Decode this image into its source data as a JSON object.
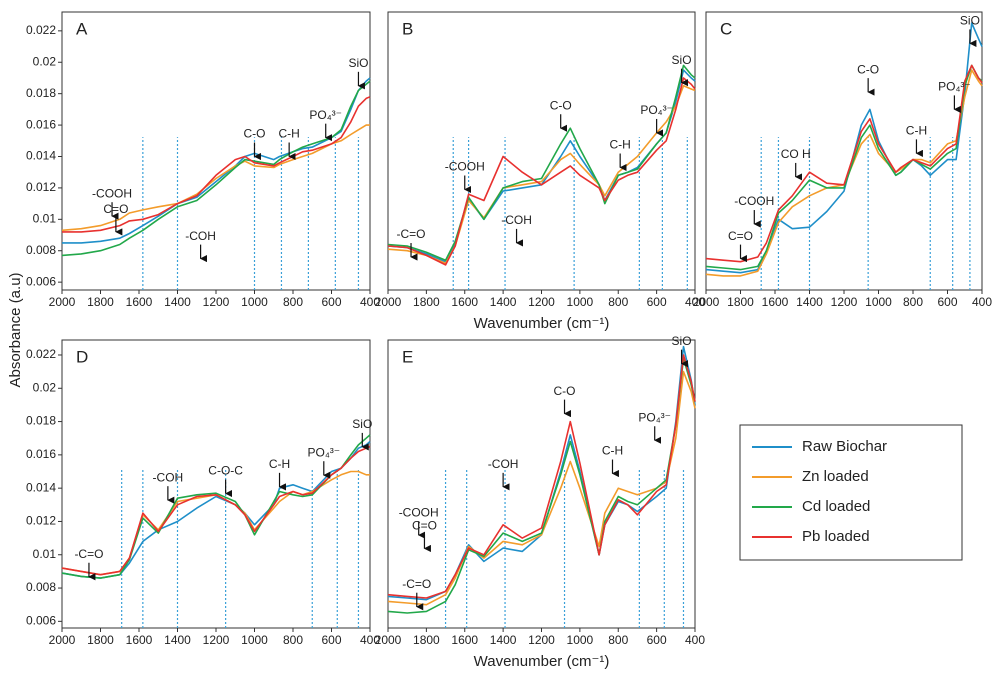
{
  "ylabel": "Absorbance (a.u)",
  "chart_data": [
    {
      "type": "line",
      "label": "A",
      "xlim": [
        2000,
        400
      ],
      "ylim": [
        0.0055,
        0.0232
      ],
      "xticks": [
        2000,
        1800,
        1600,
        1400,
        1200,
        1000,
        800,
        600,
        400
      ],
      "yticks": [
        0.006,
        0.008,
        0.01,
        0.012,
        0.014,
        0.016,
        0.018,
        0.02,
        0.022
      ],
      "x": [
        2000,
        1900,
        1800,
        1700,
        1650,
        1580,
        1500,
        1400,
        1300,
        1200,
        1100,
        1050,
        1000,
        900,
        870,
        800,
        750,
        700,
        600,
        550,
        500,
        460,
        420,
        400
      ],
      "series": [
        {
          "name": "Raw Biochar",
          "color": "#1f8fc9",
          "values": [
            0.0085,
            0.0085,
            0.0086,
            0.0088,
            0.0091,
            0.0096,
            0.0102,
            0.011,
            0.0114,
            0.0124,
            0.0134,
            0.014,
            0.0142,
            0.0138,
            0.014,
            0.0143,
            0.0145,
            0.0146,
            0.0152,
            0.0156,
            0.017,
            0.0182,
            0.0188,
            0.019
          ]
        },
        {
          "name": "Zn loaded",
          "color": "#f39c2b",
          "values": [
            0.0093,
            0.0094,
            0.0096,
            0.01,
            0.0104,
            0.0106,
            0.0108,
            0.011,
            0.0116,
            0.0126,
            0.0134,
            0.0137,
            0.0134,
            0.0133,
            0.0135,
            0.0138,
            0.014,
            0.0142,
            0.0148,
            0.015,
            0.0154,
            0.0157,
            0.016,
            0.016
          ]
        },
        {
          "name": "Cd loaded",
          "color": "#22a84a",
          "values": [
            0.0077,
            0.0078,
            0.008,
            0.0084,
            0.0088,
            0.0093,
            0.01,
            0.0108,
            0.0112,
            0.0122,
            0.0133,
            0.0138,
            0.0137,
            0.0135,
            0.0138,
            0.0143,
            0.0146,
            0.0148,
            0.0152,
            0.0157,
            0.0172,
            0.0182,
            0.0186,
            0.0188
          ]
        },
        {
          "name": "Pb loaded",
          "color": "#e8312f",
          "values": [
            0.0092,
            0.0092,
            0.0093,
            0.0096,
            0.0099,
            0.01,
            0.0103,
            0.011,
            0.0115,
            0.0128,
            0.0138,
            0.014,
            0.0136,
            0.0134,
            0.0136,
            0.014,
            0.0143,
            0.0144,
            0.0148,
            0.0152,
            0.0162,
            0.0172,
            0.0177,
            0.0178
          ]
        }
      ],
      "markers": [
        1580,
        1400,
        1000,
        860,
        720,
        580,
        460
      ],
      "annotations": [
        {
          "text": "-COOH",
          "x": 1740,
          "y": 0.0116
        },
        {
          "text": "C=O",
          "x": 1720,
          "y": 0.0106
        },
        {
          "text": "-COH",
          "x": 1280,
          "y": 0.0089
        },
        {
          "text": "C-O",
          "x": 1000,
          "y": 0.0154
        },
        {
          "text": "C-H",
          "x": 820,
          "y": 0.0154
        },
        {
          "text": "PO₄³⁻",
          "x": 630,
          "y": 0.0166
        },
        {
          "text": "SiO",
          "x": 460,
          "y": 0.0199
        }
      ]
    },
    {
      "type": "line",
      "label": "B",
      "xlabel": "Wavenumber (cm⁻¹)",
      "xlim": [
        2000,
        400
      ],
      "ylim": [
        0.0055,
        0.0232
      ],
      "xticks": [
        2000,
        1800,
        1600,
        1400,
        1200,
        1000,
        800,
        600,
        400
      ],
      "x": [
        2000,
        1900,
        1800,
        1700,
        1650,
        1580,
        1500,
        1400,
        1300,
        1200,
        1100,
        1050,
        1000,
        900,
        870,
        800,
        750,
        700,
        600,
        550,
        500,
        460,
        420,
        400
      ],
      "series": [
        {
          "name": "Raw Biochar",
          "color": "#1f8fc9",
          "values": [
            0.0083,
            0.0082,
            0.0078,
            0.0073,
            0.0085,
            0.0113,
            0.01,
            0.0118,
            0.012,
            0.0122,
            0.014,
            0.015,
            0.014,
            0.0122,
            0.0112,
            0.0128,
            0.013,
            0.0133,
            0.0148,
            0.0155,
            0.0175,
            0.0195,
            0.019,
            0.0188
          ]
        },
        {
          "name": "Zn loaded",
          "color": "#f39c2b",
          "values": [
            0.0081,
            0.008,
            0.0077,
            0.0072,
            0.0083,
            0.0112,
            0.0101,
            0.012,
            0.0122,
            0.0124,
            0.0138,
            0.0142,
            0.0135,
            0.0122,
            0.0115,
            0.013,
            0.0135,
            0.014,
            0.0155,
            0.0162,
            0.0172,
            0.0185,
            0.0183,
            0.0182
          ]
        },
        {
          "name": "Cd loaded",
          "color": "#22a84a",
          "values": [
            0.0084,
            0.0083,
            0.0079,
            0.0074,
            0.0086,
            0.0114,
            0.01,
            0.012,
            0.0124,
            0.0126,
            0.0148,
            0.0158,
            0.0145,
            0.0122,
            0.011,
            0.0128,
            0.013,
            0.0132,
            0.0148,
            0.0155,
            0.0178,
            0.0198,
            0.0192,
            0.019
          ]
        },
        {
          "name": "Pb loaded",
          "color": "#e8312f",
          "values": [
            0.0083,
            0.0082,
            0.0077,
            0.0071,
            0.0083,
            0.0116,
            0.0112,
            0.014,
            0.013,
            0.0122,
            0.013,
            0.0134,
            0.0128,
            0.012,
            0.0112,
            0.0125,
            0.0128,
            0.013,
            0.0144,
            0.015,
            0.017,
            0.019,
            0.0186,
            0.0183
          ]
        }
      ],
      "markers": [
        1660,
        1580,
        1390,
        1030,
        690,
        570,
        440
      ],
      "annotations": [
        {
          "text": "-C=O",
          "x": 1880,
          "y": 0.009
        },
        {
          "text": "-COOH",
          "x": 1600,
          "y": 0.0133
        },
        {
          "text": "-COH",
          "x": 1330,
          "y": 0.0099
        },
        {
          "text": "C-O",
          "x": 1100,
          "y": 0.0172
        },
        {
          "text": "C-H",
          "x": 790,
          "y": 0.0147
        },
        {
          "text": "PO₄³⁻",
          "x": 600,
          "y": 0.0169
        },
        {
          "text": "SiO",
          "x": 470,
          "y": 0.0201
        }
      ]
    },
    {
      "type": "line",
      "label": "C",
      "xlim": [
        2000,
        400
      ],
      "ylim": [
        0.0055,
        0.0232
      ],
      "xticks": [
        2000,
        1800,
        1600,
        1400,
        1200,
        1000,
        800,
        600,
        400
      ],
      "x": [
        2000,
        1900,
        1800,
        1700,
        1650,
        1580,
        1500,
        1400,
        1300,
        1200,
        1100,
        1050,
        1000,
        900,
        870,
        800,
        750,
        700,
        600,
        550,
        500,
        460,
        420,
        400
      ],
      "series": [
        {
          "name": "Raw Biochar",
          "color": "#1f8fc9",
          "values": [
            0.0068,
            0.0067,
            0.0066,
            0.0068,
            0.008,
            0.01,
            0.0094,
            0.0095,
            0.0105,
            0.0118,
            0.016,
            0.017,
            0.015,
            0.0128,
            0.013,
            0.0138,
            0.0134,
            0.0128,
            0.0138,
            0.0138,
            0.018,
            0.0225,
            0.0215,
            0.021
          ]
        },
        {
          "name": "Zn loaded",
          "color": "#f39c2b",
          "values": [
            0.0065,
            0.0064,
            0.0064,
            0.0067,
            0.0078,
            0.0098,
            0.0108,
            0.0115,
            0.012,
            0.0122,
            0.0148,
            0.0154,
            0.0142,
            0.013,
            0.0132,
            0.0138,
            0.0138,
            0.0136,
            0.0148,
            0.015,
            0.0178,
            0.0195,
            0.0188,
            0.0185
          ]
        },
        {
          "name": "Cd loaded",
          "color": "#22a84a",
          "values": [
            0.007,
            0.0069,
            0.0068,
            0.007,
            0.008,
            0.0104,
            0.0112,
            0.0125,
            0.012,
            0.012,
            0.0152,
            0.016,
            0.0145,
            0.0128,
            0.013,
            0.0138,
            0.0135,
            0.0132,
            0.0142,
            0.0145,
            0.0185,
            0.0198,
            0.019,
            0.0188
          ]
        },
        {
          "name": "Pb loaded",
          "color": "#e8312f",
          "values": [
            0.0075,
            0.0074,
            0.0073,
            0.0076,
            0.0085,
            0.0106,
            0.0115,
            0.013,
            0.0123,
            0.0122,
            0.0156,
            0.0164,
            0.0148,
            0.013,
            0.0133,
            0.0138,
            0.0136,
            0.0134,
            0.0145,
            0.0148,
            0.0188,
            0.0198,
            0.019,
            0.0187
          ]
        }
      ],
      "markers": [
        1680,
        1580,
        1400,
        1060,
        700,
        570,
        470
      ],
      "annotations": [
        {
          "text": "C=O",
          "x": 1800,
          "y": 0.0089
        },
        {
          "text": "-COOH",
          "x": 1720,
          "y": 0.0111
        },
        {
          "text": "CO H",
          "x": 1480,
          "y": 0.0141
        },
        {
          "text": "C-O",
          "x": 1060,
          "y": 0.0195
        },
        {
          "text": "C-H",
          "x": 780,
          "y": 0.0156
        },
        {
          "text": "PO₄³⁻",
          "x": 560,
          "y": 0.0184
        },
        {
          "text": "SiO",
          "x": 470,
          "y": 0.0226
        }
      ]
    },
    {
      "type": "line",
      "label": "D",
      "xlim": [
        2000,
        400
      ],
      "ylim": [
        0.0056,
        0.0229
      ],
      "xticks": [
        2000,
        1800,
        1600,
        1400,
        1200,
        1000,
        800,
        600,
        400
      ],
      "yticks": [
        0.006,
        0.008,
        0.01,
        0.012,
        0.014,
        0.016,
        0.018,
        0.02,
        0.022
      ],
      "x": [
        2000,
        1900,
        1800,
        1700,
        1650,
        1580,
        1500,
        1400,
        1300,
        1200,
        1100,
        1050,
        1000,
        900,
        870,
        800,
        750,
        700,
        600,
        550,
        500,
        460,
        420,
        400
      ],
      "series": [
        {
          "name": "Raw Biochar",
          "color": "#1f8fc9",
          "values": [
            0.0089,
            0.0087,
            0.0086,
            0.0088,
            0.0095,
            0.0108,
            0.0115,
            0.012,
            0.0128,
            0.0135,
            0.013,
            0.0125,
            0.0118,
            0.013,
            0.014,
            0.0142,
            0.014,
            0.0138,
            0.015,
            0.0152,
            0.0158,
            0.0164,
            0.0166,
            0.0168
          ]
        },
        {
          "name": "Zn loaded",
          "color": "#f39c2b",
          "values": [
            0.0092,
            0.009,
            0.0088,
            0.009,
            0.0098,
            0.0124,
            0.0115,
            0.0132,
            0.0134,
            0.0136,
            0.013,
            0.0125,
            0.0115,
            0.0128,
            0.0132,
            0.0138,
            0.0136,
            0.0138,
            0.0145,
            0.0148,
            0.015,
            0.015,
            0.0148,
            0.0148
          ]
        },
        {
          "name": "Cd loaded",
          "color": "#22a84a",
          "values": [
            0.0089,
            0.0087,
            0.0086,
            0.0088,
            0.0097,
            0.0122,
            0.0113,
            0.0134,
            0.0136,
            0.0137,
            0.0132,
            0.0124,
            0.0112,
            0.0132,
            0.0138,
            0.0136,
            0.0135,
            0.0136,
            0.0148,
            0.0152,
            0.016,
            0.0166,
            0.017,
            0.0172
          ]
        },
        {
          "name": "Pb loaded",
          "color": "#e8312f",
          "values": [
            0.0092,
            0.009,
            0.0088,
            0.009,
            0.0098,
            0.0125,
            0.0114,
            0.013,
            0.0135,
            0.0136,
            0.013,
            0.0124,
            0.0114,
            0.013,
            0.0135,
            0.0138,
            0.0136,
            0.0137,
            0.0148,
            0.0152,
            0.0158,
            0.0162,
            0.0164,
            0.0165
          ]
        }
      ],
      "markers": [
        1690,
        1580,
        1400,
        1150,
        700,
        570,
        460
      ],
      "annotations": [
        {
          "text": "-C=O",
          "x": 1860,
          "y": 0.01
        },
        {
          "text": "-COH",
          "x": 1450,
          "y": 0.0146
        },
        {
          "text": "C-O-C",
          "x": 1150,
          "y": 0.015
        },
        {
          "text": "C-H",
          "x": 870,
          "y": 0.0154
        },
        {
          "text": "PO₄³⁻",
          "x": 640,
          "y": 0.0161
        },
        {
          "text": "SiO",
          "x": 440,
          "y": 0.0178
        }
      ]
    },
    {
      "type": "line",
      "label": "E",
      "xlabel": "Wavenumber (cm⁻¹)",
      "xlim": [
        2000,
        400
      ],
      "ylim": [
        0.0056,
        0.0229
      ],
      "xticks": [
        2000,
        1800,
        1600,
        1400,
        1200,
        1000,
        800,
        600,
        400
      ],
      "x": [
        2000,
        1900,
        1800,
        1700,
        1650,
        1580,
        1500,
        1400,
        1300,
        1200,
        1100,
        1050,
        1000,
        900,
        870,
        800,
        750,
        700,
        600,
        550,
        500,
        460,
        420,
        400
      ],
      "series": [
        {
          "name": "Raw Biochar",
          "color": "#1f8fc9",
          "values": [
            0.0075,
            0.0074,
            0.0073,
            0.0078,
            0.0088,
            0.0106,
            0.0096,
            0.0104,
            0.0102,
            0.0112,
            0.015,
            0.0172,
            0.015,
            0.01,
            0.0118,
            0.0132,
            0.013,
            0.0126,
            0.0135,
            0.014,
            0.018,
            0.0225,
            0.0205,
            0.019
          ]
        },
        {
          "name": "Zn loaded",
          "color": "#f39c2b",
          "values": [
            0.0072,
            0.0071,
            0.007,
            0.0076,
            0.0086,
            0.0105,
            0.0098,
            0.0108,
            0.0106,
            0.0112,
            0.014,
            0.0156,
            0.014,
            0.0105,
            0.0125,
            0.014,
            0.0138,
            0.0136,
            0.014,
            0.0144,
            0.017,
            0.021,
            0.0198,
            0.0188
          ]
        },
        {
          "name": "Cd loaded",
          "color": "#22a84a",
          "values": [
            0.0066,
            0.0065,
            0.0066,
            0.0072,
            0.0082,
            0.0103,
            0.0099,
            0.0113,
            0.0108,
            0.0113,
            0.0148,
            0.0168,
            0.0148,
            0.01,
            0.012,
            0.0135,
            0.0132,
            0.013,
            0.014,
            0.0145,
            0.0178,
            0.0218,
            0.0202,
            0.0192
          ]
        },
        {
          "name": "Pb loaded",
          "color": "#e8312f",
          "values": [
            0.0076,
            0.0075,
            0.0074,
            0.0078,
            0.0088,
            0.0104,
            0.01,
            0.0118,
            0.011,
            0.0116,
            0.0156,
            0.018,
            0.0155,
            0.01,
            0.0118,
            0.0133,
            0.013,
            0.0124,
            0.0138,
            0.0142,
            0.0178,
            0.022,
            0.0204,
            0.0192
          ]
        }
      ],
      "markers": [
        1700,
        1590,
        1390,
        1080,
        690,
        560,
        460
      ],
      "annotations": [
        {
          "text": "-C=O",
          "x": 1850,
          "y": 0.0082
        },
        {
          "text": "-COOH",
          "x": 1840,
          "y": 0.0125
        },
        {
          "text": "C=O",
          "x": 1810,
          "y": 0.0117
        },
        {
          "text": "-COH",
          "x": 1400,
          "y": 0.0154
        },
        {
          "text": "C-O",
          "x": 1080,
          "y": 0.0198
        },
        {
          "text": "C-H",
          "x": 830,
          "y": 0.0162
        },
        {
          "text": "PO₄³⁻",
          "x": 610,
          "y": 0.0182
        },
        {
          "text": "SiO",
          "x": 470,
          "y": 0.0228
        }
      ]
    }
  ]
}
